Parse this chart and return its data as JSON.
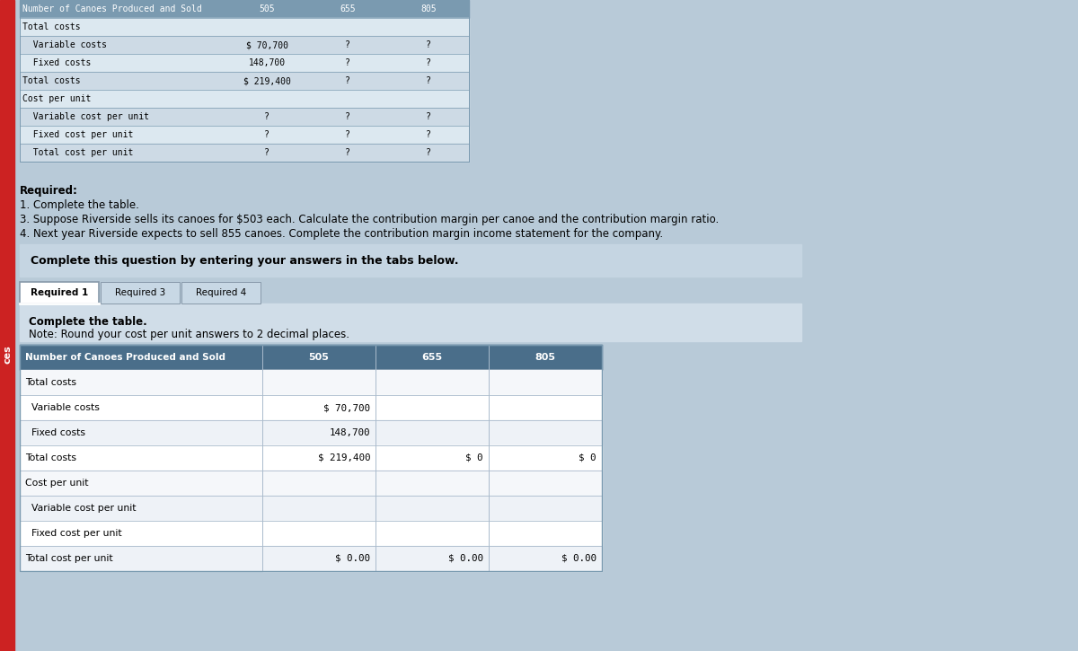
{
  "page_bg": "#b8cad8",
  "top_table": {
    "header_bg": "#7a9ab0",
    "row_bg1": "#dce8f0",
    "row_bg2": "#cddae5",
    "col_label": "Number of Canoes Produced and Sold",
    "col_values": [
      "505",
      "655",
      "805"
    ],
    "rows": [
      {
        "label": "Total costs",
        "indent": false,
        "vals": [
          "",
          "",
          ""
        ]
      },
      {
        "label": "  Variable costs",
        "indent": true,
        "vals": [
          "$ 70,700",
          "?",
          "?"
        ]
      },
      {
        "label": "  Fixed costs",
        "indent": true,
        "vals": [
          "148,700",
          "?",
          "?"
        ]
      },
      {
        "label": "Total costs",
        "indent": false,
        "vals": [
          "$ 219,400",
          "?",
          "?"
        ]
      },
      {
        "label": "Cost per unit",
        "indent": false,
        "vals": [
          "",
          "",
          ""
        ]
      },
      {
        "label": "  Variable cost per unit",
        "indent": true,
        "vals": [
          "?",
          "?",
          "?"
        ]
      },
      {
        "label": "  Fixed cost per unit",
        "indent": true,
        "vals": [
          "?",
          "?",
          "?"
        ]
      },
      {
        "label": "  Total cost per unit",
        "indent": true,
        "vals": [
          "?",
          "?",
          "?"
        ]
      }
    ]
  },
  "required_lines": [
    {
      "text": "Required:",
      "bold": true
    },
    {
      "text": "1. Complete the table.",
      "bold": false
    },
    {
      "text": "3. Suppose Riverside sells its canoes for $503 each. Calculate the contribution margin per canoe and the contribution margin ratio.",
      "bold": false
    },
    {
      "text": "4. Next year Riverside expects to sell 855 canoes. Complete the contribution margin income statement for the company.",
      "bold": false
    }
  ],
  "banner_bg": "#c5d5e2",
  "banner_text": "Complete this question by entering your answers in the tabs below.",
  "tabs": [
    "Required 1",
    "Required 3",
    "Required 4"
  ],
  "active_tab": 0,
  "instr_bg": "#d0dde8",
  "instr_title": "Complete the table.",
  "instr_note": "Note: Round your cost per unit answers to 2 decimal places.",
  "bottom_table": {
    "header_bg": "#4a6e8a",
    "header_text_color": "#ffffff",
    "row_bg1": "#ffffff",
    "row_bg2": "#eef2f7",
    "section_bg": "#f5f7fa",
    "col_label": "Number of Canoes Produced and Sold",
    "col_values": [
      "505",
      "655",
      "805"
    ],
    "rows": [
      {
        "label": "Total costs",
        "section": true,
        "vals": [
          "",
          "",
          ""
        ]
      },
      {
        "label": "  Variable costs",
        "section": false,
        "vals": [
          "$ 70,700",
          "",
          ""
        ]
      },
      {
        "label": "  Fixed costs",
        "section": false,
        "vals": [
          "148,700",
          "",
          ""
        ]
      },
      {
        "label": "Total costs",
        "section": false,
        "vals": [
          "$ 219,400",
          "$ 0",
          "$ 0"
        ]
      },
      {
        "label": "Cost per unit",
        "section": true,
        "vals": [
          "",
          "",
          ""
        ]
      },
      {
        "label": "  Variable cost per unit",
        "section": false,
        "vals": [
          "",
          "",
          ""
        ]
      },
      {
        "label": "  Fixed cost per unit",
        "section": false,
        "vals": [
          "",
          "",
          ""
        ]
      },
      {
        "label": "Total cost per unit",
        "section": false,
        "vals": [
          "$ 0.00",
          "$ 0.00",
          "$ 0.00"
        ]
      }
    ]
  },
  "sidebar_text": "ces",
  "sidebar_color": "#cc2222"
}
